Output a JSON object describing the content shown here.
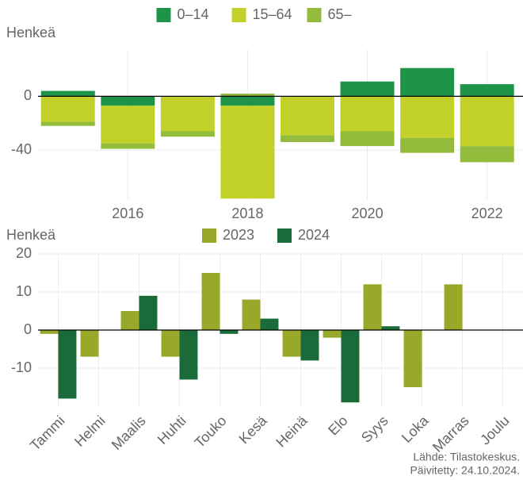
{
  "chart_data": [
    {
      "type": "stacked_bar",
      "y_label": "Henkeä",
      "x": [
        2015,
        2016,
        2017,
        2018,
        2019,
        2020,
        2021,
        2022
      ],
      "xlim": [
        2014.5,
        2022.6
      ],
      "xticks": [
        2016,
        2018,
        2020,
        2022
      ],
      "ylim": [
        -77,
        35
      ],
      "yticks": [
        0,
        -40
      ],
      "grid": true,
      "legend": "top",
      "series": [
        {
          "name": "0–14",
          "color": "#1e9448",
          "values": [
            4,
            -7,
            0,
            -7,
            0,
            11,
            21,
            9
          ]
        },
        {
          "name": "15–64",
          "color": "#c2d12a",
          "values": [
            -19,
            -28,
            -26,
            -69,
            -29,
            -26,
            -31,
            -37
          ]
        },
        {
          "name": "65–",
          "color": "#93bb3c",
          "values": [
            -3,
            -4,
            -4,
            2,
            -5,
            -11,
            -11,
            -12
          ]
        }
      ]
    },
    {
      "type": "grouped_bar",
      "y_label": "Henkeä",
      "categories": [
        "Tammi",
        "Helmi",
        "Maalis",
        "Huhti",
        "Touko",
        "Kesä",
        "Heinä",
        "Elo",
        "Syys",
        "Loka",
        "Marras",
        "Joulu"
      ],
      "ylim": [
        -20,
        20
      ],
      "yticks": [
        20,
        10,
        0,
        -10
      ],
      "grid": true,
      "legend": "top",
      "series": [
        {
          "name": "2023",
          "color": "#9aa82a",
          "values": [
            -1,
            -7,
            5,
            -7,
            15,
            8,
            -7,
            -2,
            12,
            -15,
            12,
            null
          ]
        },
        {
          "name": "2024",
          "color": "#1a6b3a",
          "values": [
            -18,
            null,
            9,
            -13,
            -1,
            3,
            -8,
            -19,
            1,
            null,
            null,
            null
          ]
        }
      ]
    }
  ],
  "footer": {
    "source": "Lähde: Tilastokeskus.",
    "updated": "Päivitetty: 24.10.2024."
  }
}
